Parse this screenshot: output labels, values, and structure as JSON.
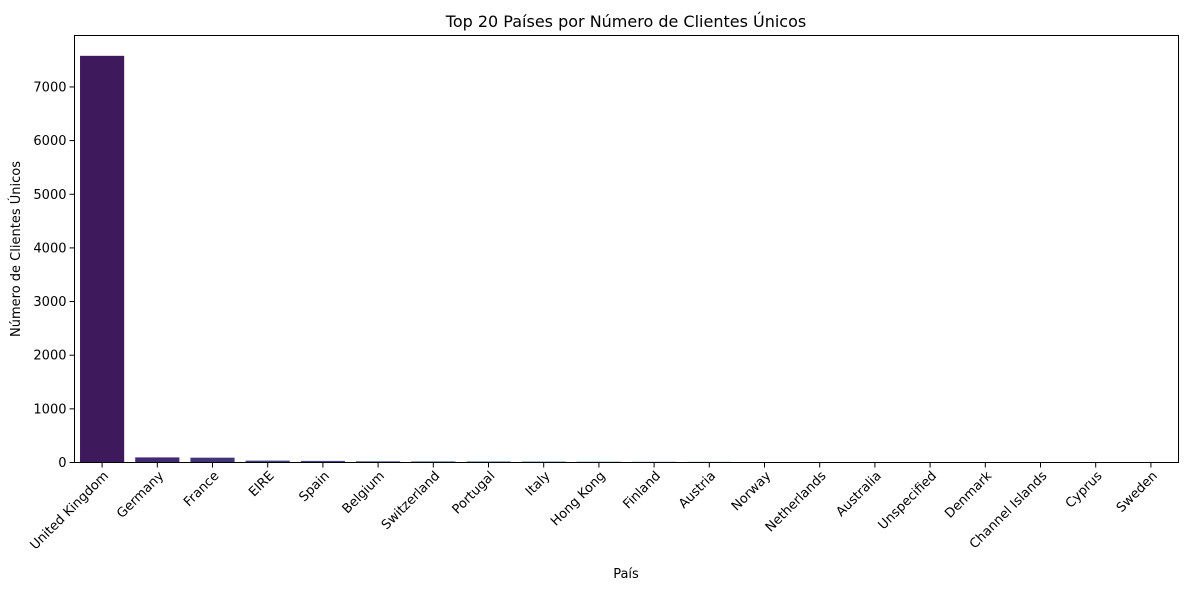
{
  "chart_data": {
    "type": "bar",
    "title": "Top 20 Países por Número de Clientes Únicos",
    "xlabel": "País",
    "ylabel": "Número de Clientes Únicos",
    "categories": [
      "United Kingdom",
      "Germany",
      "France",
      "EIRE",
      "Spain",
      "Belgium",
      "Switzerland",
      "Portugal",
      "Italy",
      "Hong Kong",
      "Finland",
      "Austria",
      "Norway",
      "Netherlands",
      "Australia",
      "Unspecified",
      "Denmark",
      "Channel Islands",
      "Cyprus",
      "Sweden"
    ],
    "values": [
      7580,
      95,
      90,
      35,
      30,
      22,
      20,
      19,
      17,
      15,
      13,
      12,
      8,
      6,
      5,
      5,
      4,
      4,
      3,
      3
    ],
    "colors": [
      "#3e1a5c",
      "#432a70",
      "#43357a",
      "#433f80",
      "#3f4a86",
      "#3b5388",
      "#375e8a",
      "#33678c",
      "#2f718e",
      "#2b7a8e",
      "#27848d",
      "#238d8b",
      "#24968a",
      "#29a085",
      "#35aa7e",
      "#46b473",
      "#5abd67",
      "#73c55a",
      "#8ecd4d",
      "#aad43f"
    ],
    "yticks": [
      0,
      1000,
      2000,
      3000,
      4000,
      5000,
      6000,
      7000
    ],
    "ylim": [
      0,
      7959
    ],
    "grid": false,
    "legend": false
  }
}
